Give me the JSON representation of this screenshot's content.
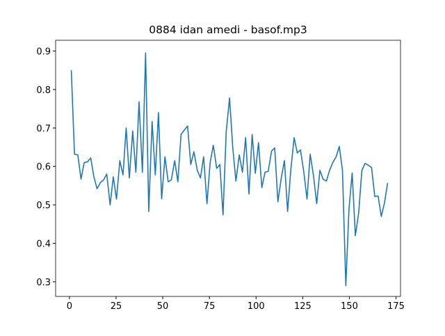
{
  "chart_data": {
    "type": "line",
    "title": "0884 idan amedi - basof.mp3",
    "x": [
      1,
      2.7,
      4.5,
      6.2,
      7.9,
      9.7,
      11.4,
      13.1,
      14.8,
      16.6,
      18.3,
      20.0,
      21.8,
      23.5,
      25.2,
      27.0,
      28.7,
      30.4,
      32.1,
      33.9,
      35.6,
      37.3,
      39.1,
      40.8,
      42.5,
      44.3,
      46.0,
      47.7,
      49.4,
      51.2,
      52.9,
      54.6,
      56.4,
      58.1,
      59.8,
      61.6,
      63.3,
      65.0,
      66.7,
      68.5,
      70.2,
      71.9,
      73.7,
      75.4,
      77.1,
      78.9,
      80.6,
      82.3,
      84.0,
      85.8,
      87.5,
      89.2,
      91.0,
      92.7,
      94.4,
      96.2,
      97.9,
      99.6,
      101.3,
      103.1,
      104.8,
      106.5,
      108.3,
      110.0,
      111.7,
      113.5,
      115.2,
      116.9,
      118.6,
      120.4,
      122.1,
      123.8,
      125.6,
      127.3,
      129.0,
      130.8,
      132.5,
      134.2,
      135.9,
      137.7,
      139.4,
      141.1,
      142.9,
      144.6,
      146.3,
      148.1,
      149.8,
      151.5,
      153.2,
      155.0,
      156.7,
      158.4,
      160.2,
      161.9,
      163.6,
      165.4,
      167.1,
      168.8,
      170.5
    ],
    "series": [
      {
        "color": "#1f77b4",
        "values": [
          0.85,
          0.632,
          0.63,
          0.567,
          0.61,
          0.612,
          0.622,
          0.573,
          0.542,
          0.558,
          0.565,
          0.58,
          0.5,
          0.573,
          0.515,
          0.615,
          0.578,
          0.7,
          0.57,
          0.692,
          0.585,
          0.768,
          0.585,
          0.895,
          0.483,
          0.717,
          0.578,
          0.74,
          0.516,
          0.625,
          0.56,
          0.565,
          0.615,
          0.56,
          0.683,
          0.695,
          0.705,
          0.605,
          0.638,
          0.59,
          0.57,
          0.625,
          0.503,
          0.61,
          0.655,
          0.595,
          0.605,
          0.474,
          0.69,
          0.778,
          0.65,
          0.562,
          0.63,
          0.585,
          0.675,
          0.528,
          0.683,
          0.582,
          0.662,
          0.545,
          0.585,
          0.587,
          0.64,
          0.648,
          0.508,
          0.57,
          0.615,
          0.483,
          0.59,
          0.675,
          0.635,
          0.643,
          0.585,
          0.515,
          0.632,
          0.575,
          0.503,
          0.59,
          0.567,
          0.562,
          0.59,
          0.61,
          0.625,
          0.652,
          0.59,
          0.29,
          0.49,
          0.583,
          0.42,
          0.48,
          0.59,
          0.608,
          0.603,
          0.597,
          0.522,
          0.523,
          0.47,
          0.505,
          0.557
        ]
      }
    ],
    "xlim": [
      -7.4,
      177.4
    ],
    "xticks": [
      0,
      25,
      50,
      75,
      100,
      125,
      150,
      175
    ],
    "ylim": [
      0.262,
      0.928
    ],
    "yticks": [
      0.3,
      0.4,
      0.5,
      0.6,
      0.7,
      0.8,
      0.9
    ]
  }
}
